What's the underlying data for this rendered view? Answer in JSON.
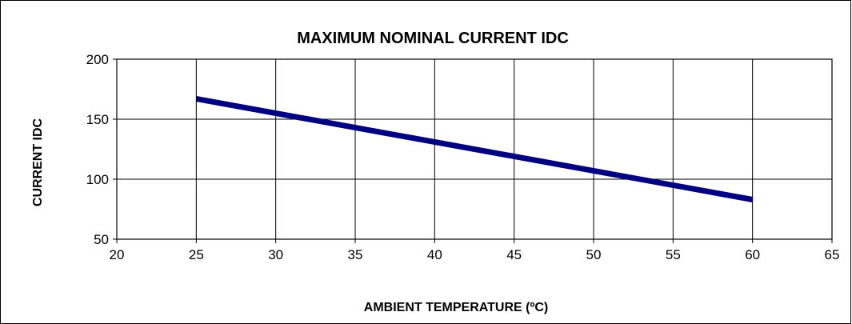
{
  "chart_data": {
    "type": "line",
    "title": "MAXIMUM NOMINAL CURRENT IDC",
    "xlabel": "AMBIENT TEMPERATURE (ºC)",
    "ylabel": "CURRENT IDC",
    "xlim": [
      20,
      65
    ],
    "ylim": [
      50,
      200
    ],
    "xticks": [
      20,
      25,
      30,
      35,
      40,
      45,
      50,
      55,
      60,
      65
    ],
    "yticks": [
      50,
      100,
      150,
      200
    ],
    "grid": true,
    "legend": "none",
    "series": [
      {
        "x": [
          25,
          60
        ],
        "y": [
          167,
          83
        ],
        "color": "#000080"
      }
    ]
  }
}
